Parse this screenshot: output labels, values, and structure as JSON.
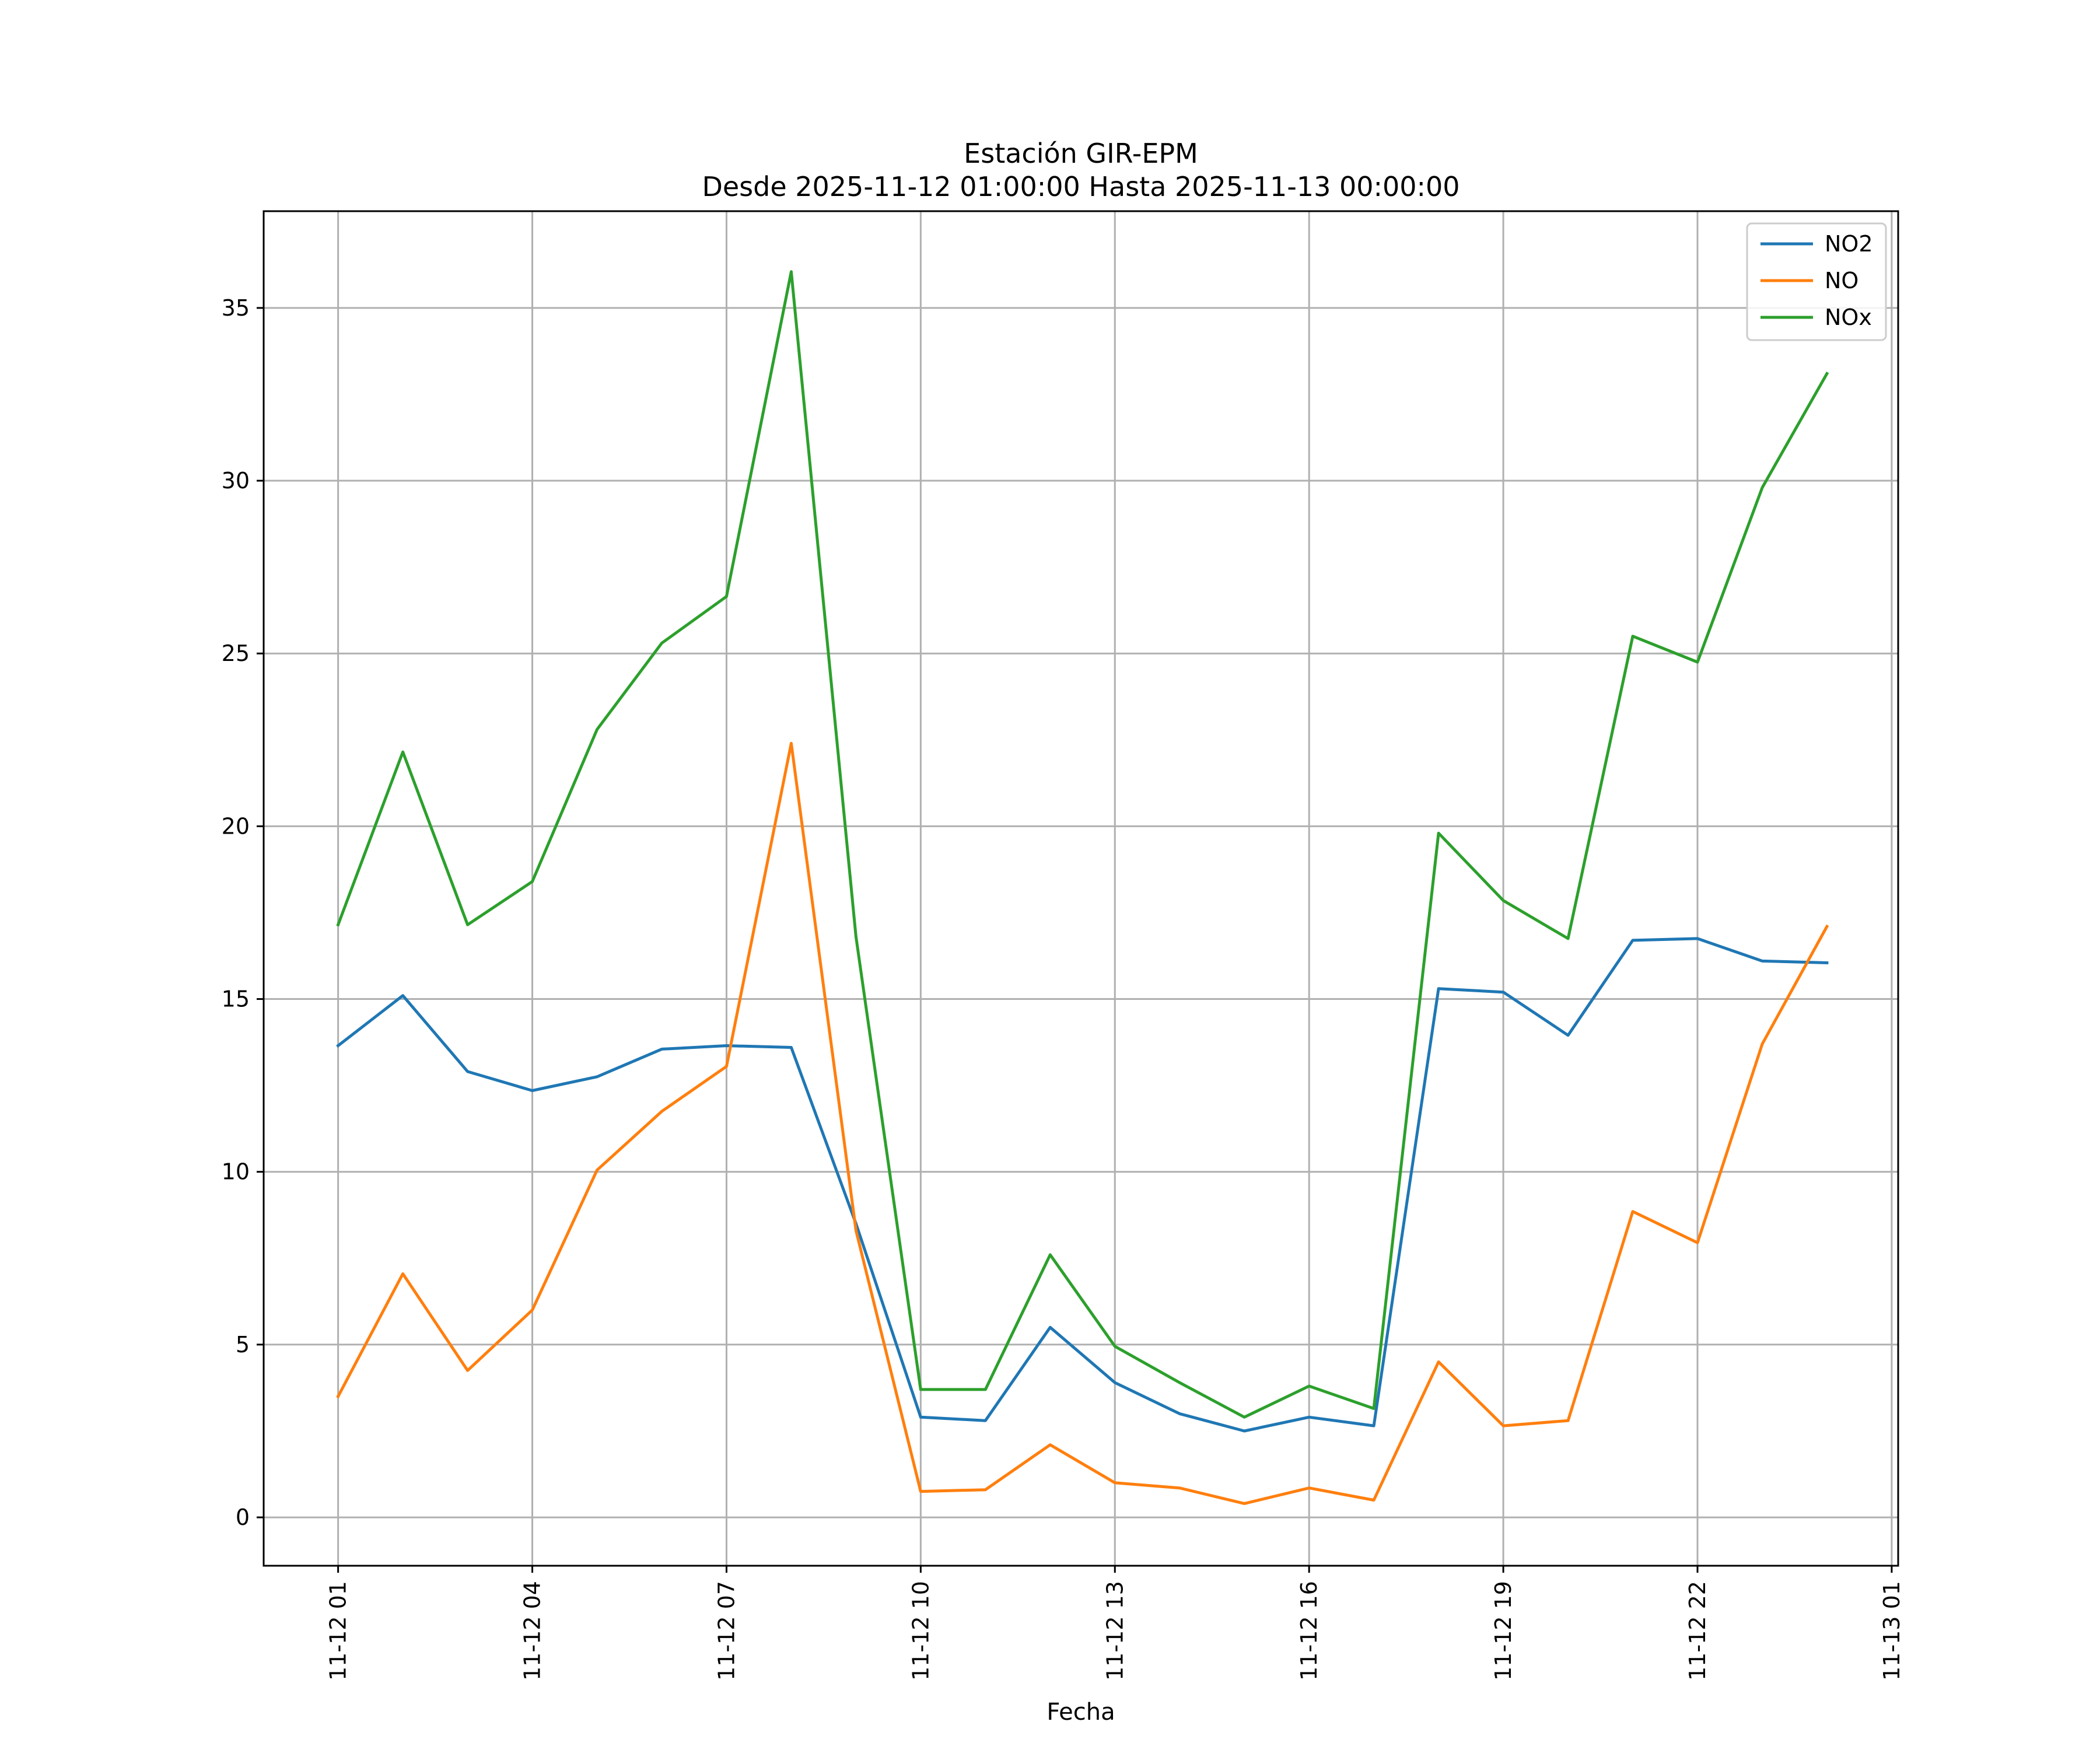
{
  "chart_data": {
    "type": "line",
    "title": "Estación GIR-EPM",
    "subtitle": "Desde 2025-11-12 01:00:00 Hasta 2025-11-13 00:00:00",
    "xlabel": "Fecha",
    "ylabel": "",
    "x_hours": [
      1,
      2,
      3,
      4,
      5,
      6,
      7,
      8,
      9,
      10,
      11,
      12,
      13,
      14,
      15,
      16,
      17,
      18,
      19,
      20,
      21,
      22,
      23,
      24
    ],
    "xlim_hours": [
      -0.15,
      25.1
    ],
    "ylim": [
      -1.4,
      37.8
    ],
    "grid": true,
    "legend_position": "top-right",
    "x_ticks": [
      {
        "hour": 1,
        "label": "11-12 01"
      },
      {
        "hour": 4,
        "label": "11-12 04"
      },
      {
        "hour": 7,
        "label": "11-12 07"
      },
      {
        "hour": 10,
        "label": "11-12 10"
      },
      {
        "hour": 13,
        "label": "11-12 13"
      },
      {
        "hour": 16,
        "label": "11-12 16"
      },
      {
        "hour": 19,
        "label": "11-12 19"
      },
      {
        "hour": 22,
        "label": "11-12 22"
      },
      {
        "hour": 25,
        "label": "11-13 01"
      }
    ],
    "y_ticks": [
      {
        "value": 0,
        "label": "0"
      },
      {
        "value": 5,
        "label": "5"
      },
      {
        "value": 10,
        "label": "10"
      },
      {
        "value": 15,
        "label": "15"
      },
      {
        "value": 20,
        "label": "20"
      },
      {
        "value": 25,
        "label": "25"
      },
      {
        "value": 30,
        "label": "30"
      },
      {
        "value": 35,
        "label": "35"
      }
    ],
    "series": [
      {
        "name": "NO2",
        "color": "#1f77b4",
        "values": [
          13.65,
          15.1,
          12.9,
          12.35,
          12.75,
          13.55,
          13.65,
          13.6,
          8.5,
          2.9,
          2.8,
          5.5,
          3.9,
          3.0,
          2.5,
          2.9,
          2.65,
          15.3,
          15.2,
          13.95,
          16.7,
          16.75,
          16.1,
          16.05
        ]
      },
      {
        "name": "NO",
        "color": "#ff7f0e",
        "values": [
          3.5,
          7.05,
          4.25,
          6.0,
          10.05,
          11.75,
          13.05,
          22.4,
          8.3,
          0.75,
          0.8,
          2.1,
          1.0,
          0.85,
          0.4,
          0.85,
          0.5,
          4.5,
          2.65,
          2.8,
          8.85,
          7.95,
          13.7,
          17.1
        ]
      },
      {
        "name": "NOx",
        "color": "#2ca02c",
        "values": [
          17.15,
          22.15,
          17.15,
          18.4,
          22.8,
          25.3,
          26.65,
          36.05,
          16.8,
          3.7,
          3.7,
          7.6,
          4.95,
          3.9,
          2.9,
          3.8,
          3.15,
          19.8,
          17.85,
          16.75,
          25.5,
          24.75,
          29.8,
          33.1
        ]
      }
    ]
  }
}
